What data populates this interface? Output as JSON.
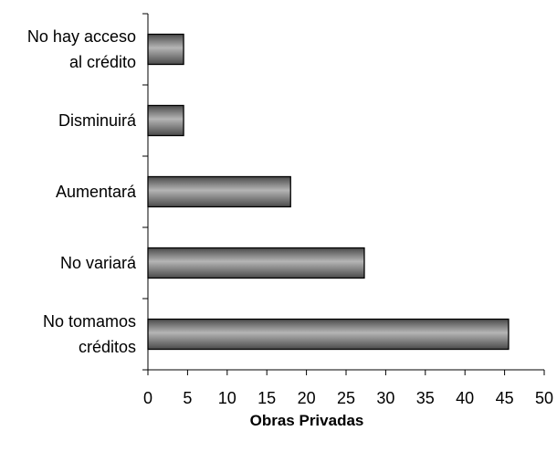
{
  "chart_data": {
    "type": "bar",
    "orientation": "horizontal",
    "categories": [
      [
        "No hay acceso",
        "al crédito"
      ],
      [
        "Disminuirá"
      ],
      [
        "Aumentará"
      ],
      [
        "No variará"
      ],
      [
        "No tomamos",
        "créditos"
      ]
    ],
    "values": [
      4.5,
      4.5,
      18,
      27.3,
      45.5
    ],
    "xlim": [
      0,
      50
    ],
    "xticks": [
      "0",
      "5",
      "10",
      "15",
      "20",
      "25",
      "30",
      "35",
      "40",
      "45",
      "50"
    ],
    "xlabel": "Obras Privadas",
    "ylabel": "",
    "title": "",
    "grid": false,
    "legend": "none",
    "colors": {
      "bar_fill_dark": "#4a4a4a",
      "bar_fill_light": "#b5b5b5",
      "bar_stroke": "#000000",
      "axis": "#000000"
    }
  }
}
